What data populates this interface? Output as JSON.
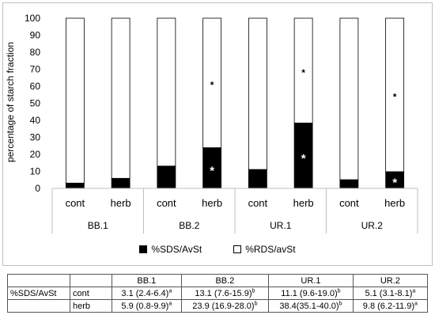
{
  "chart_data": {
    "type": "bar",
    "stacked": true,
    "ylabel": "percentage of starch fraction",
    "ylim": [
      0,
      100
    ],
    "yticks": [
      0,
      10,
      20,
      30,
      40,
      50,
      60,
      70,
      80,
      90,
      100
    ],
    "grid": false,
    "legend_placement": "bottom",
    "groups": [
      "BB.1",
      "BB.2",
      "UR.1",
      "UR.2"
    ],
    "categories": [
      "cont",
      "herb",
      "cont",
      "herb",
      "cont",
      "herb",
      "cont",
      "herb"
    ],
    "series": [
      {
        "name": "%SDS/AvSt",
        "color": "#000000",
        "values": [
          3.1,
          5.9,
          13.1,
          23.9,
          11.1,
          38.4,
          5.1,
          9.8
        ]
      },
      {
        "name": "%RDS/avSt",
        "color": "#ffffff",
        "values": [
          96.9,
          94.1,
          86.9,
          76.1,
          88.9,
          61.6,
          94.9,
          90.2
        ]
      }
    ],
    "annotations": [
      {
        "bar": 3,
        "series": 0,
        "text": "*"
      },
      {
        "bar": 3,
        "series": 1,
        "text": "*"
      },
      {
        "bar": 5,
        "series": 0,
        "text": "*"
      },
      {
        "bar": 5,
        "series": 1,
        "text": "*"
      },
      {
        "bar": 7,
        "series": 0,
        "text": "*"
      },
      {
        "bar": 7,
        "series": 1,
        "text": "*"
      }
    ]
  },
  "table": {
    "header": [
      "",
      "",
      "BB.1",
      "BB.2",
      "UR.1",
      "UR.2"
    ],
    "rows": [
      {
        "label": "%SDS/AvSt",
        "sub": "cont",
        "cells": [
          {
            "v": "3.1 (2.4-6.4)",
            "s": "a"
          },
          {
            "v": "13.1 (7.6-15.9)",
            "s": "b"
          },
          {
            "v": "11.1 (9.6-19.0)",
            "s": "b"
          },
          {
            "v": "5.1 (3.1-8.1)",
            "s": "a"
          }
        ]
      },
      {
        "label": "",
        "sub": "herb",
        "cells": [
          {
            "v": "5.9 (0.8-9.9)",
            "s": "a"
          },
          {
            "v": "23.9 (16.9-28.0)",
            "s": "b"
          },
          {
            "v": "38.4(35.1-40.0)",
            "s": "b"
          },
          {
            "v": "9.8 (6.2-11.9)",
            "s": "a"
          }
        ]
      }
    ]
  }
}
